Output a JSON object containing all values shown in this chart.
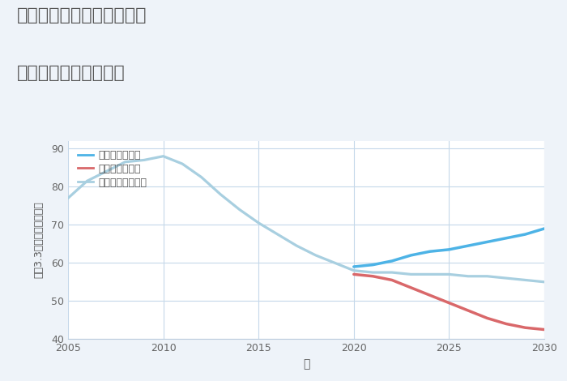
{
  "title_line1": "三重県桑名市多度町古野の",
  "title_line2": "中古戸建ての価格推移",
  "xlabel": "年",
  "ylabel": "平（3.3㎡）単価（万円）",
  "xlim": [
    2005,
    2030
  ],
  "ylim": [
    40,
    92
  ],
  "yticks": [
    40,
    50,
    60,
    70,
    80,
    90
  ],
  "xticks": [
    2005,
    2010,
    2015,
    2020,
    2025,
    2030
  ],
  "background_color": "#eef3f9",
  "plot_bg_color": "#ffffff",
  "grid_color": "#c5d8ea",
  "good_color": "#4db3e6",
  "bad_color": "#d9686a",
  "normal_color": "#a8cfe0",
  "good_label": "グッドシナリオ",
  "bad_label": "バッドシナリオ",
  "normal_label": "ノーマルシナリオ",
  "good_x": [
    2020,
    2021,
    2022,
    2023,
    2024,
    2025,
    2026,
    2027,
    2028,
    2029,
    2030
  ],
  "good_y": [
    59.0,
    59.5,
    60.5,
    62.0,
    63.0,
    63.5,
    64.5,
    65.5,
    66.5,
    67.5,
    69.0
  ],
  "bad_x": [
    2020,
    2021,
    2022,
    2023,
    2024,
    2025,
    2026,
    2027,
    2028,
    2029,
    2030
  ],
  "bad_y": [
    57.0,
    56.5,
    55.5,
    53.5,
    51.5,
    49.5,
    47.5,
    45.5,
    44.0,
    43.0,
    42.5
  ],
  "normal_x": [
    2005,
    2006,
    2007,
    2008,
    2009,
    2010,
    2011,
    2012,
    2013,
    2014,
    2015,
    2016,
    2017,
    2018,
    2019,
    2020,
    2021,
    2022,
    2023,
    2024,
    2025,
    2026,
    2027,
    2028,
    2029,
    2030
  ],
  "normal_y": [
    77.0,
    81.5,
    84.0,
    86.5,
    87.0,
    88.0,
    86.0,
    82.5,
    78.0,
    74.0,
    70.5,
    67.5,
    64.5,
    62.0,
    60.0,
    58.0,
    57.5,
    57.5,
    57.0,
    57.0,
    57.0,
    56.5,
    56.5,
    56.0,
    55.5,
    55.0
  ]
}
